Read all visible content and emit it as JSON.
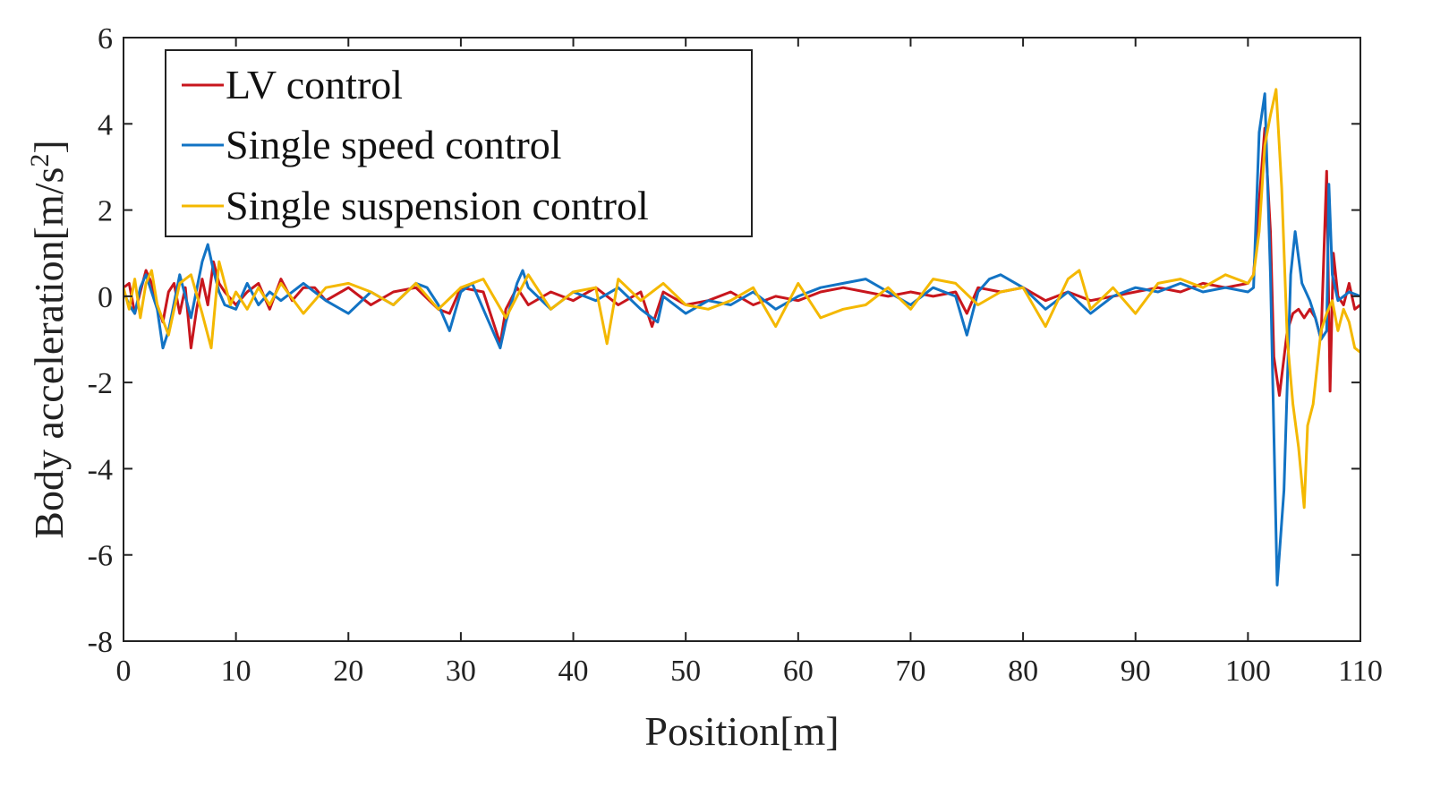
{
  "chart_data": {
    "type": "line",
    "title": "",
    "xlabel": "Position[m]",
    "ylabel_main": "Body acceleration[m/s",
    "ylabel_sup": "2",
    "ylabel_end": "]",
    "xlim": [
      0,
      110
    ],
    "ylim": [
      -8,
      6
    ],
    "xticks": [
      0,
      10,
      20,
      30,
      40,
      50,
      60,
      70,
      80,
      90,
      100,
      110
    ],
    "xtick_labels": [
      "0",
      "10",
      "20",
      "30",
      "40",
      "50",
      "60",
      "70",
      "80",
      "90",
      "100",
      "110"
    ],
    "yticks": [
      -8,
      -6,
      -4,
      -2,
      0,
      2,
      4,
      6
    ],
    "ytick_labels": [
      "-8",
      "-6",
      "-4",
      "-2",
      "0",
      "2",
      "4",
      "6"
    ],
    "grid": false,
    "legend_position": "top-left",
    "series": [
      {
        "name": "LV control",
        "color": "#c8161d",
        "x": [
          0,
          0.5,
          1,
          1.5,
          2,
          2.5,
          3,
          3.5,
          4,
          4.5,
          5,
          5.5,
          6,
          6.5,
          7,
          7.5,
          8,
          8.5,
          9,
          10,
          11,
          12,
          13,
          14,
          15,
          16,
          17,
          18,
          20,
          22,
          24,
          26,
          28,
          29,
          30,
          32,
          33.5,
          34,
          35,
          36,
          38,
          40,
          42,
          44,
          46,
          47,
          48,
          50,
          52,
          54,
          56,
          58,
          60,
          62,
          64,
          66,
          68,
          70,
          72,
          74,
          75,
          76,
          78,
          80,
          82,
          84,
          86,
          88,
          90,
          92,
          94,
          96,
          98,
          100,
          100.5,
          101,
          101.5,
          102,
          102.3,
          102.8,
          103.5,
          104,
          104.5,
          105,
          105.5,
          106,
          106.5,
          107,
          107.3,
          107.6,
          108,
          108.5,
          109,
          109.5,
          110
        ],
        "y": [
          0.2,
          0.3,
          -0.4,
          0.1,
          0.6,
          0.3,
          -0.2,
          -0.6,
          0.1,
          0.3,
          -0.4,
          0.2,
          -1.2,
          -0.3,
          0.4,
          -0.2,
          0.8,
          0.3,
          0.1,
          -0.2,
          0.1,
          0.3,
          -0.3,
          0.4,
          -0.1,
          0.2,
          0.2,
          -0.1,
          0.2,
          -0.2,
          0.1,
          0.2,
          -0.3,
          -0.4,
          0.2,
          0.1,
          -1.1,
          -0.3,
          0.2,
          -0.2,
          0.1,
          -0.1,
          0.2,
          -0.2,
          0.1,
          -0.7,
          0.1,
          -0.2,
          -0.1,
          0.1,
          -0.2,
          0.0,
          -0.1,
          0.1,
          0.2,
          0.1,
          0.0,
          0.1,
          0.0,
          0.1,
          -0.4,
          0.2,
          0.1,
          0.2,
          -0.1,
          0.1,
          -0.1,
          0.0,
          0.1,
          0.2,
          0.1,
          0.3,
          0.2,
          0.3,
          0.5,
          2.2,
          3.9,
          1.5,
          -1.4,
          -2.3,
          -0.8,
          -0.4,
          -0.3,
          -0.5,
          -0.3,
          -0.5,
          -1.0,
          2.9,
          -2.2,
          1.0,
          0.0,
          -0.2,
          0.3,
          -0.3,
          -0.2
        ]
      },
      {
        "name": "Single speed control",
        "color": "#1273c4",
        "x": [
          0,
          0.5,
          1,
          1.5,
          2,
          3,
          3.5,
          4,
          5,
          6,
          7,
          7.5,
          8,
          8.5,
          9,
          10,
          11,
          12,
          13,
          14,
          16,
          18,
          20,
          22,
          24,
          26,
          27,
          28,
          29,
          30,
          31,
          32,
          33.5,
          34,
          35,
          35.5,
          36,
          38,
          40,
          42,
          44,
          46,
          47.5,
          48,
          50,
          52,
          54,
          56,
          58,
          60,
          62,
          64,
          66,
          68,
          70,
          72,
          74,
          75,
          76,
          77,
          78,
          80,
          82,
          83,
          84,
          86,
          88,
          90,
          92,
          94,
          96,
          98,
          100,
          100.5,
          101,
          101.5,
          102,
          102.6,
          103.2,
          103.8,
          104.2,
          104.8,
          105.5,
          106,
          106.5,
          107,
          107.2,
          107.5,
          108,
          108.5,
          109,
          110
        ],
        "y": [
          0.1,
          -0.2,
          -0.4,
          0.2,
          0.5,
          -0.3,
          -1.2,
          -0.8,
          0.5,
          -0.5,
          0.8,
          1.2,
          0.6,
          0.1,
          -0.2,
          -0.3,
          0.3,
          -0.2,
          0.1,
          -0.1,
          0.3,
          -0.1,
          -0.4,
          0.1,
          -0.2,
          0.3,
          0.2,
          -0.2,
          -0.8,
          0.1,
          0.3,
          -0.3,
          -1.2,
          -0.6,
          0.3,
          0.6,
          0.2,
          -0.3,
          0.1,
          -0.1,
          0.2,
          -0.3,
          -0.6,
          0.0,
          -0.4,
          -0.1,
          -0.2,
          0.1,
          -0.3,
          0.0,
          0.2,
          0.3,
          0.4,
          0.1,
          -0.2,
          0.2,
          0.0,
          -0.9,
          0.1,
          0.4,
          0.5,
          0.2,
          -0.3,
          -0.1,
          0.1,
          -0.4,
          0.0,
          0.2,
          0.1,
          0.3,
          0.1,
          0.2,
          0.1,
          0.2,
          3.8,
          4.7,
          0.5,
          -6.7,
          -4.5,
          0.5,
          1.5,
          0.3,
          -0.1,
          -0.5,
          -1.0,
          -0.8,
          2.6,
          0.5,
          -0.1,
          0.0,
          0.1,
          0.0
        ]
      },
      {
        "name": "Single suspension control",
        "color": "#f4b800",
        "x": [
          0,
          0.5,
          1,
          1.5,
          2,
          2.5,
          3,
          4,
          5,
          6,
          7,
          7.8,
          8.5,
          9.5,
          10,
          11,
          12,
          13,
          14,
          16,
          18,
          20,
          22,
          24,
          26,
          28,
          30,
          32,
          34,
          36,
          38,
          40,
          42,
          43,
          44,
          46,
          48,
          50,
          52,
          54,
          56,
          58,
          60,
          62,
          64,
          66,
          68,
          70,
          72,
          74,
          76,
          78,
          80,
          82,
          84,
          85,
          86,
          88,
          90,
          92,
          94,
          96,
          98,
          100,
          100.5,
          101,
          101.5,
          102,
          102.5,
          103,
          103.5,
          104,
          104.5,
          105,
          105.3,
          105.8,
          106.5,
          107,
          107.5,
          108,
          108.5,
          109,
          109.5,
          110
        ],
        "y": [
          0.2,
          -0.3,
          0.4,
          -0.5,
          0.3,
          0.6,
          -0.2,
          -0.9,
          0.3,
          0.5,
          -0.4,
          -1.2,
          0.8,
          -0.2,
          0.1,
          -0.3,
          0.2,
          -0.2,
          0.3,
          -0.4,
          0.2,
          0.3,
          0.1,
          -0.2,
          0.3,
          -0.3,
          0.2,
          0.4,
          -0.5,
          0.5,
          -0.3,
          0.1,
          0.2,
          -1.1,
          0.4,
          -0.1,
          0.3,
          -0.2,
          -0.3,
          -0.1,
          0.2,
          -0.7,
          0.3,
          -0.5,
          -0.3,
          -0.2,
          0.2,
          -0.3,
          0.4,
          0.3,
          -0.2,
          0.1,
          0.2,
          -0.7,
          0.4,
          0.6,
          -0.3,
          0.2,
          -0.4,
          0.3,
          0.4,
          0.2,
          0.5,
          0.3,
          0.5,
          1.5,
          3.5,
          4.2,
          4.8,
          2.5,
          -1.0,
          -2.5,
          -3.5,
          -4.9,
          -3.0,
          -2.5,
          -0.8,
          -0.4,
          -0.1,
          -0.8,
          -0.3,
          -0.6,
          -1.2,
          -1.3
        ]
      }
    ]
  }
}
